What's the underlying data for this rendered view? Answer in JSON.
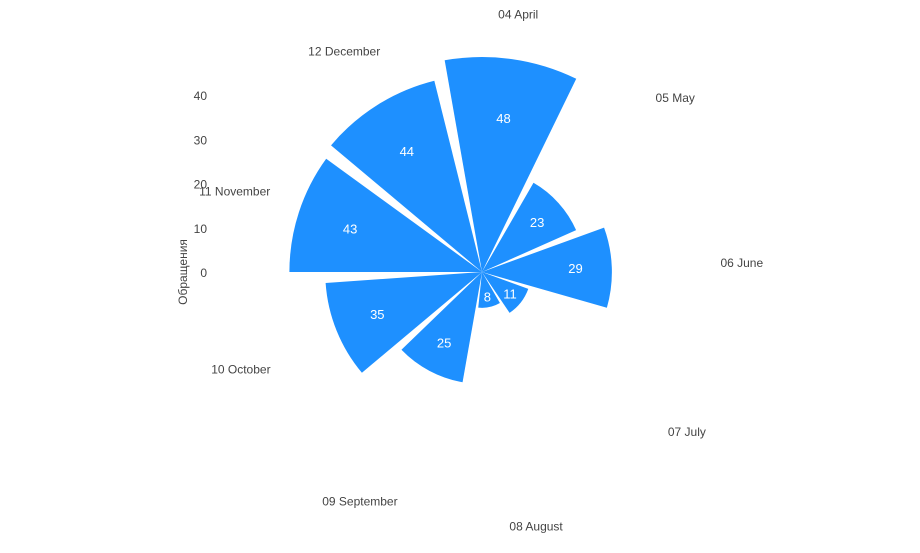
{
  "chart_data": {
    "type": "bar",
    "subtype": "polar-rose",
    "categories": [
      "04 April",
      "05 May",
      "06 June",
      "07 July",
      "08 August",
      "09 September",
      "10 October",
      "11 November",
      "12 December"
    ],
    "values": [
      48,
      23,
      29,
      11,
      8,
      25,
      35,
      43,
      44
    ],
    "ylabel": "Обращения",
    "yticks": [
      0,
      10,
      20,
      30,
      40
    ],
    "ylim": [
      0,
      48
    ],
    "grid": false,
    "legend": "none",
    "bar_color": "#1e90ff"
  }
}
